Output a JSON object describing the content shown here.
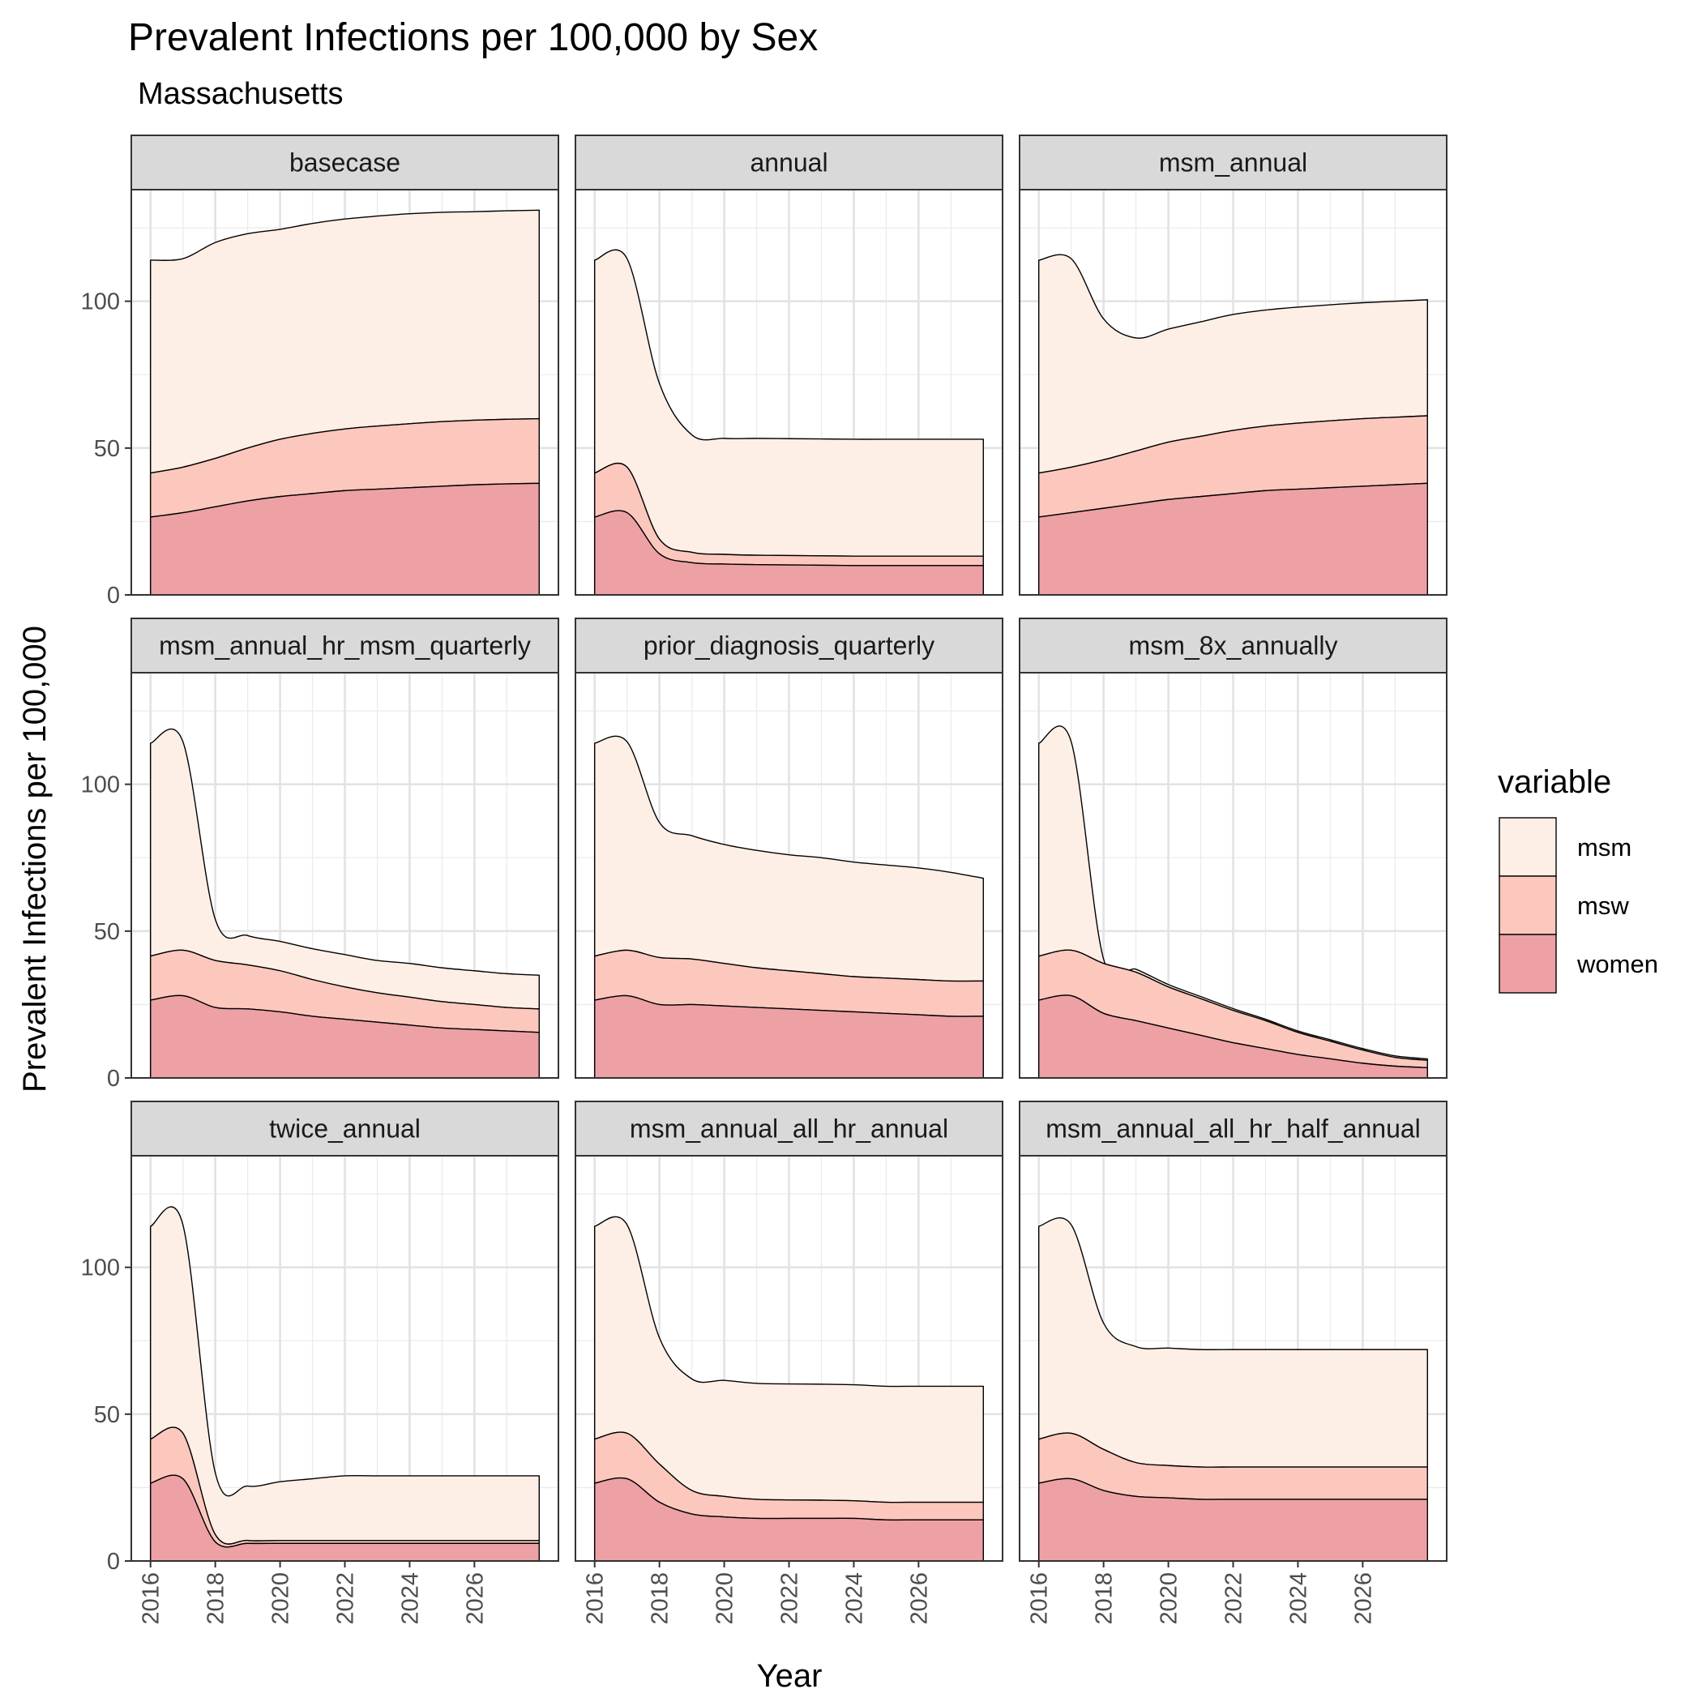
{
  "chart_data": {
    "type": "area",
    "stacked": true,
    "title": "Prevalent Infections per 100,000 by Sex",
    "subtitle": "Massachusetts",
    "xlabel": "Year",
    "ylabel": "Prevalent Infections per 100,000",
    "xlim": [
      2016,
      2028
    ],
    "ylim": [
      0,
      138
    ],
    "x_ticks": [
      2016,
      2018,
      2020,
      2022,
      2024,
      2026
    ],
    "y_ticks": [
      0,
      50,
      100
    ],
    "grid": true,
    "legend": {
      "title": "variable",
      "position": "right",
      "entries": [
        {
          "name": "msm",
          "color": "#FEEFE6"
        },
        {
          "name": "msw",
          "color": "#FCC8BE"
        },
        {
          "name": "women",
          "color": "#EDA1A5"
        }
      ]
    },
    "x": [
      2016,
      2017,
      2018,
      2019,
      2020,
      2021,
      2022,
      2023,
      2024,
      2025,
      2026,
      2027,
      2028
    ],
    "facets": [
      {
        "name": "basecase",
        "women": [
          26.5,
          28,
          30,
          32,
          33.5,
          34.5,
          35.5,
          36,
          36.5,
          37,
          37.5,
          37.8,
          38
        ],
        "msw": [
          15,
          15.5,
          16.5,
          18,
          19.5,
          20.5,
          21,
          21.5,
          21.8,
          22,
          22,
          22,
          22
        ],
        "msm": [
          72.5,
          71,
          73.5,
          73,
          71.5,
          71.5,
          71.5,
          71.5,
          71.5,
          71.3,
          71,
          71,
          71
        ]
      },
      {
        "name": "annual",
        "women": [
          26.5,
          28,
          14,
          11,
          10.5,
          10.3,
          10.2,
          10.1,
          10,
          10,
          10,
          10,
          10
        ],
        "msw": [
          15,
          15.5,
          5,
          3.5,
          3.3,
          3.2,
          3.2,
          3.2,
          3.2,
          3.2,
          3.2,
          3.2,
          3.2
        ],
        "msm": [
          72.5,
          71,
          53,
          40,
          39.5,
          39.8,
          39.8,
          39.8,
          39.8,
          39.8,
          39.8,
          39.8,
          39.8
        ]
      },
      {
        "name": "msm_annual",
        "women": [
          26.5,
          28,
          29.5,
          31,
          32.5,
          33.5,
          34.5,
          35.5,
          36,
          36.5,
          37,
          37.5,
          38
        ],
        "msw": [
          15,
          15.5,
          16.5,
          18,
          19.5,
          20.5,
          21.5,
          22,
          22.5,
          22.8,
          23,
          23,
          23
        ],
        "msm": [
          72.5,
          71,
          48,
          38.5,
          38.5,
          39,
          39.5,
          39.5,
          39.5,
          39.5,
          39.5,
          39.5,
          39.5
        ]
      },
      {
        "name": "msm_annual_hr_msm_quarterly",
        "women": [
          26.5,
          28,
          24,
          23.5,
          22.5,
          21,
          20,
          19,
          18,
          17,
          16.5,
          16,
          15.5
        ],
        "msw": [
          15,
          15.5,
          16,
          15,
          14,
          12.5,
          11,
          10,
          9.5,
          9,
          8.5,
          8,
          8
        ],
        "msm": [
          72.5,
          71,
          14,
          10,
          10,
          10.5,
          11,
          11,
          11.5,
          11.5,
          11.5,
          11.5,
          11.5
        ]
      },
      {
        "name": "prior_diagnosis_quarterly",
        "women": [
          26.5,
          28,
          25,
          25,
          24.5,
          24,
          23.5,
          23,
          22.5,
          22,
          21.5,
          21,
          21
        ],
        "msw": [
          15,
          15.5,
          16,
          15.5,
          14.5,
          13.5,
          13,
          12.5,
          12,
          12,
          12,
          12,
          12
        ],
        "msm": [
          72.5,
          71,
          46,
          42,
          40.5,
          40,
          39.5,
          39.5,
          39,
          38.5,
          38,
          37,
          35
        ]
      },
      {
        "name": "msm_8x_annually",
        "women": [
          26.5,
          28,
          22,
          19.5,
          17,
          14.5,
          12,
          10,
          8,
          6.5,
          5,
          4,
          3.5
        ],
        "msw": [
          15,
          15.5,
          17,
          16.5,
          14,
          12.5,
          11,
          9.5,
          7.5,
          6,
          4.5,
          3,
          2.5
        ],
        "msm": [
          72.5,
          71,
          1.5,
          1,
          0.8,
          0.7,
          0.6,
          0.5,
          0.5,
          0.5,
          0.5,
          0.5,
          0.5
        ]
      },
      {
        "name": "twice_annual",
        "women": [
          26.5,
          28,
          6.5,
          6,
          6,
          6,
          6,
          6,
          6,
          6,
          6,
          6,
          6
        ],
        "msw": [
          15,
          15.5,
          2.5,
          1,
          1,
          1,
          1,
          1,
          1,
          1,
          1,
          1,
          1
        ],
        "msm": [
          72.5,
          71,
          21,
          18.5,
          20,
          21,
          22,
          22,
          22,
          22,
          22,
          22,
          22
        ]
      },
      {
        "name": "msm_annual_all_hr_annual",
        "women": [
          26.5,
          28,
          20,
          16,
          15,
          14.5,
          14.5,
          14.5,
          14.5,
          14,
          14,
          14,
          14
        ],
        "msw": [
          15,
          15.5,
          13,
          8,
          7,
          6.5,
          6.3,
          6.2,
          6,
          6,
          6,
          6,
          6
        ],
        "msm": [
          72.5,
          71,
          43,
          38,
          39.5,
          39.5,
          39.5,
          39.5,
          39.5,
          39.5,
          39.5,
          39.5,
          39.5
        ]
      },
      {
        "name": "msm_annual_all_hr_half_annual",
        "women": [
          26.5,
          28,
          24,
          22,
          21.5,
          21,
          21,
          21,
          21,
          21,
          21,
          21,
          21
        ],
        "msw": [
          15,
          15.5,
          14,
          11.5,
          11,
          11,
          11,
          11,
          11,
          11,
          11,
          11,
          11
        ],
        "msm": [
          72.5,
          71,
          43,
          39.5,
          40,
          40,
          40,
          40,
          40,
          40,
          40,
          40,
          40
        ]
      }
    ]
  }
}
